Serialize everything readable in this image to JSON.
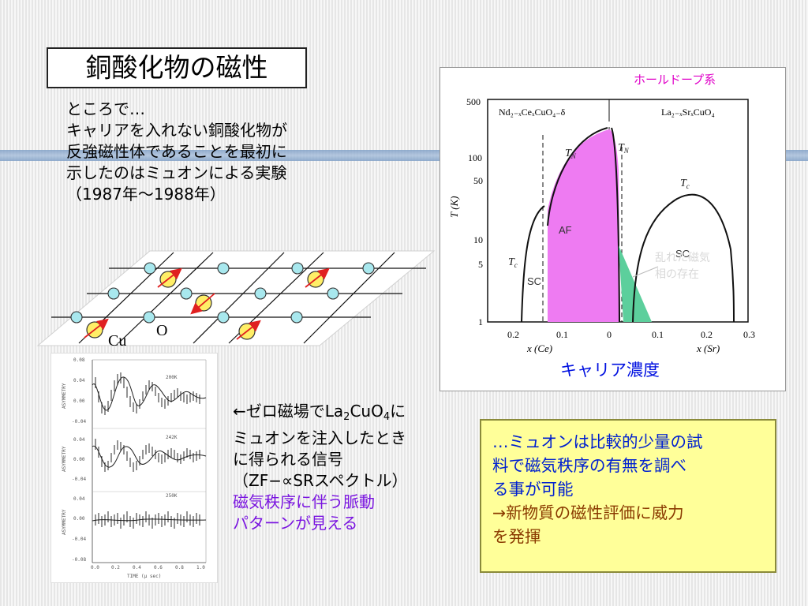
{
  "slide": {
    "title": "銅酸化物の磁性"
  },
  "intro": {
    "lines": [
      "ところで…",
      "キャリアを入れない銅酸化物が",
      "反強磁性体であることを最初に",
      "示したのはミュオンによる実験",
      "（1987年～1988年）"
    ]
  },
  "lattice": {
    "cu_label": "Cu",
    "o_label": "O"
  },
  "muon_plot": {
    "y_axis_label": "ASYMMETRY",
    "x_axis_label": "TIME (μ sec)",
    "panels": [
      {
        "temp": "200K",
        "ticks": [
          "0.08",
          "0.04",
          "0.00",
          "-0.04"
        ]
      },
      {
        "temp": "242K",
        "ticks": [
          "0.04",
          "0.00",
          "-0.04"
        ]
      },
      {
        "temp": "250K",
        "ticks": [
          "0.04",
          "0.00",
          "-0.04",
          "-0.08"
        ]
      }
    ],
    "x_ticks": [
      "0.0",
      "0.2",
      "0.4",
      "0.6",
      "0.8",
      "1.0"
    ]
  },
  "zf_text": {
    "line1_pre": "←ゼロ磁場でLa",
    "sub1": "2",
    "line1_mid": "CuO",
    "sub2": "4",
    "line1_post": "に",
    "line2": "ミュオンを注入したとき",
    "line3": "に得られる信号",
    "line4": "（ZF−∝SRスペクトル）",
    "line5": "磁気秩序に伴う脈動",
    "line6": "パターンが見える"
  },
  "phase_diagram": {
    "hole_label": "ホールドープ系",
    "left_compound": "Nd₂₋ₓCeₓCuO₄₋δ",
    "right_compound": "La₂₋ₓSrₓCuO₄",
    "y_axis_label": "T (K)",
    "y_ticks": [
      "500",
      "100",
      "50",
      "10",
      "5",
      "1"
    ],
    "x_ticks": [
      "0.2",
      "0.1",
      "0",
      "0.1",
      "0.2",
      "0.3"
    ],
    "x_left_label": "x (Ce)",
    "x_right_label": "x (Sr)",
    "tn_left": "T",
    "tn_sub": "N",
    "tc_label": "T",
    "tc_sub": "c",
    "af_label": "AF",
    "sc_left": "SC",
    "sc_right": "SC",
    "random_label_1": "乱れた磁気",
    "random_label_2": "相の存在",
    "carrier_label": "キャリア濃度",
    "colors": {
      "af_fill": "#ee7bf2",
      "random_fill": "#5ccf9c",
      "label_magenta": "#e000c8",
      "carrier_blue": "#0010e0"
    }
  },
  "summary": {
    "line1": "…ミュオンは比較的少量の試",
    "line2": "料で磁気秩序の有無を調べ",
    "line3": "る事が可能",
    "line4": "→新物質の磁性評価に威力",
    "line5": "を発揮"
  }
}
